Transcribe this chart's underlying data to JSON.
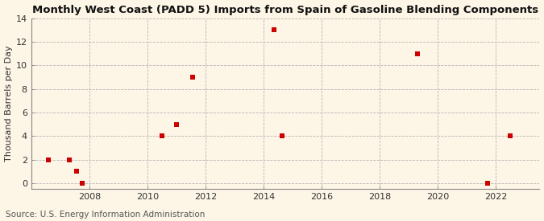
{
  "title": "Monthly West Coast (PADD 5) Imports from Spain of Gasoline Blending Components",
  "ylabel": "Thousand Barrels per Day",
  "source": "Source: U.S. Energy Information Administration",
  "background_color": "#fdf5e6",
  "grid_color": "#b0b0b0",
  "point_color": "#cc0000",
  "xlim": [
    2006,
    2023.5
  ],
  "ylim": [
    -0.5,
    14
  ],
  "xticks": [
    2008,
    2010,
    2012,
    2014,
    2016,
    2018,
    2020,
    2022
  ],
  "yticks": [
    0,
    2,
    4,
    6,
    8,
    10,
    12,
    14
  ],
  "data_x": [
    2006.6,
    2007.3,
    2007.55,
    2007.75,
    2010.5,
    2011.0,
    2011.55,
    2014.35,
    2014.65,
    2019.3,
    2021.7,
    2022.5
  ],
  "data_y": [
    2,
    2,
    1,
    0,
    4,
    5,
    9,
    13,
    4,
    11,
    0,
    4
  ],
  "marker_size": 22,
  "title_fontsize": 9.5,
  "axis_fontsize": 8,
  "source_fontsize": 7.5
}
